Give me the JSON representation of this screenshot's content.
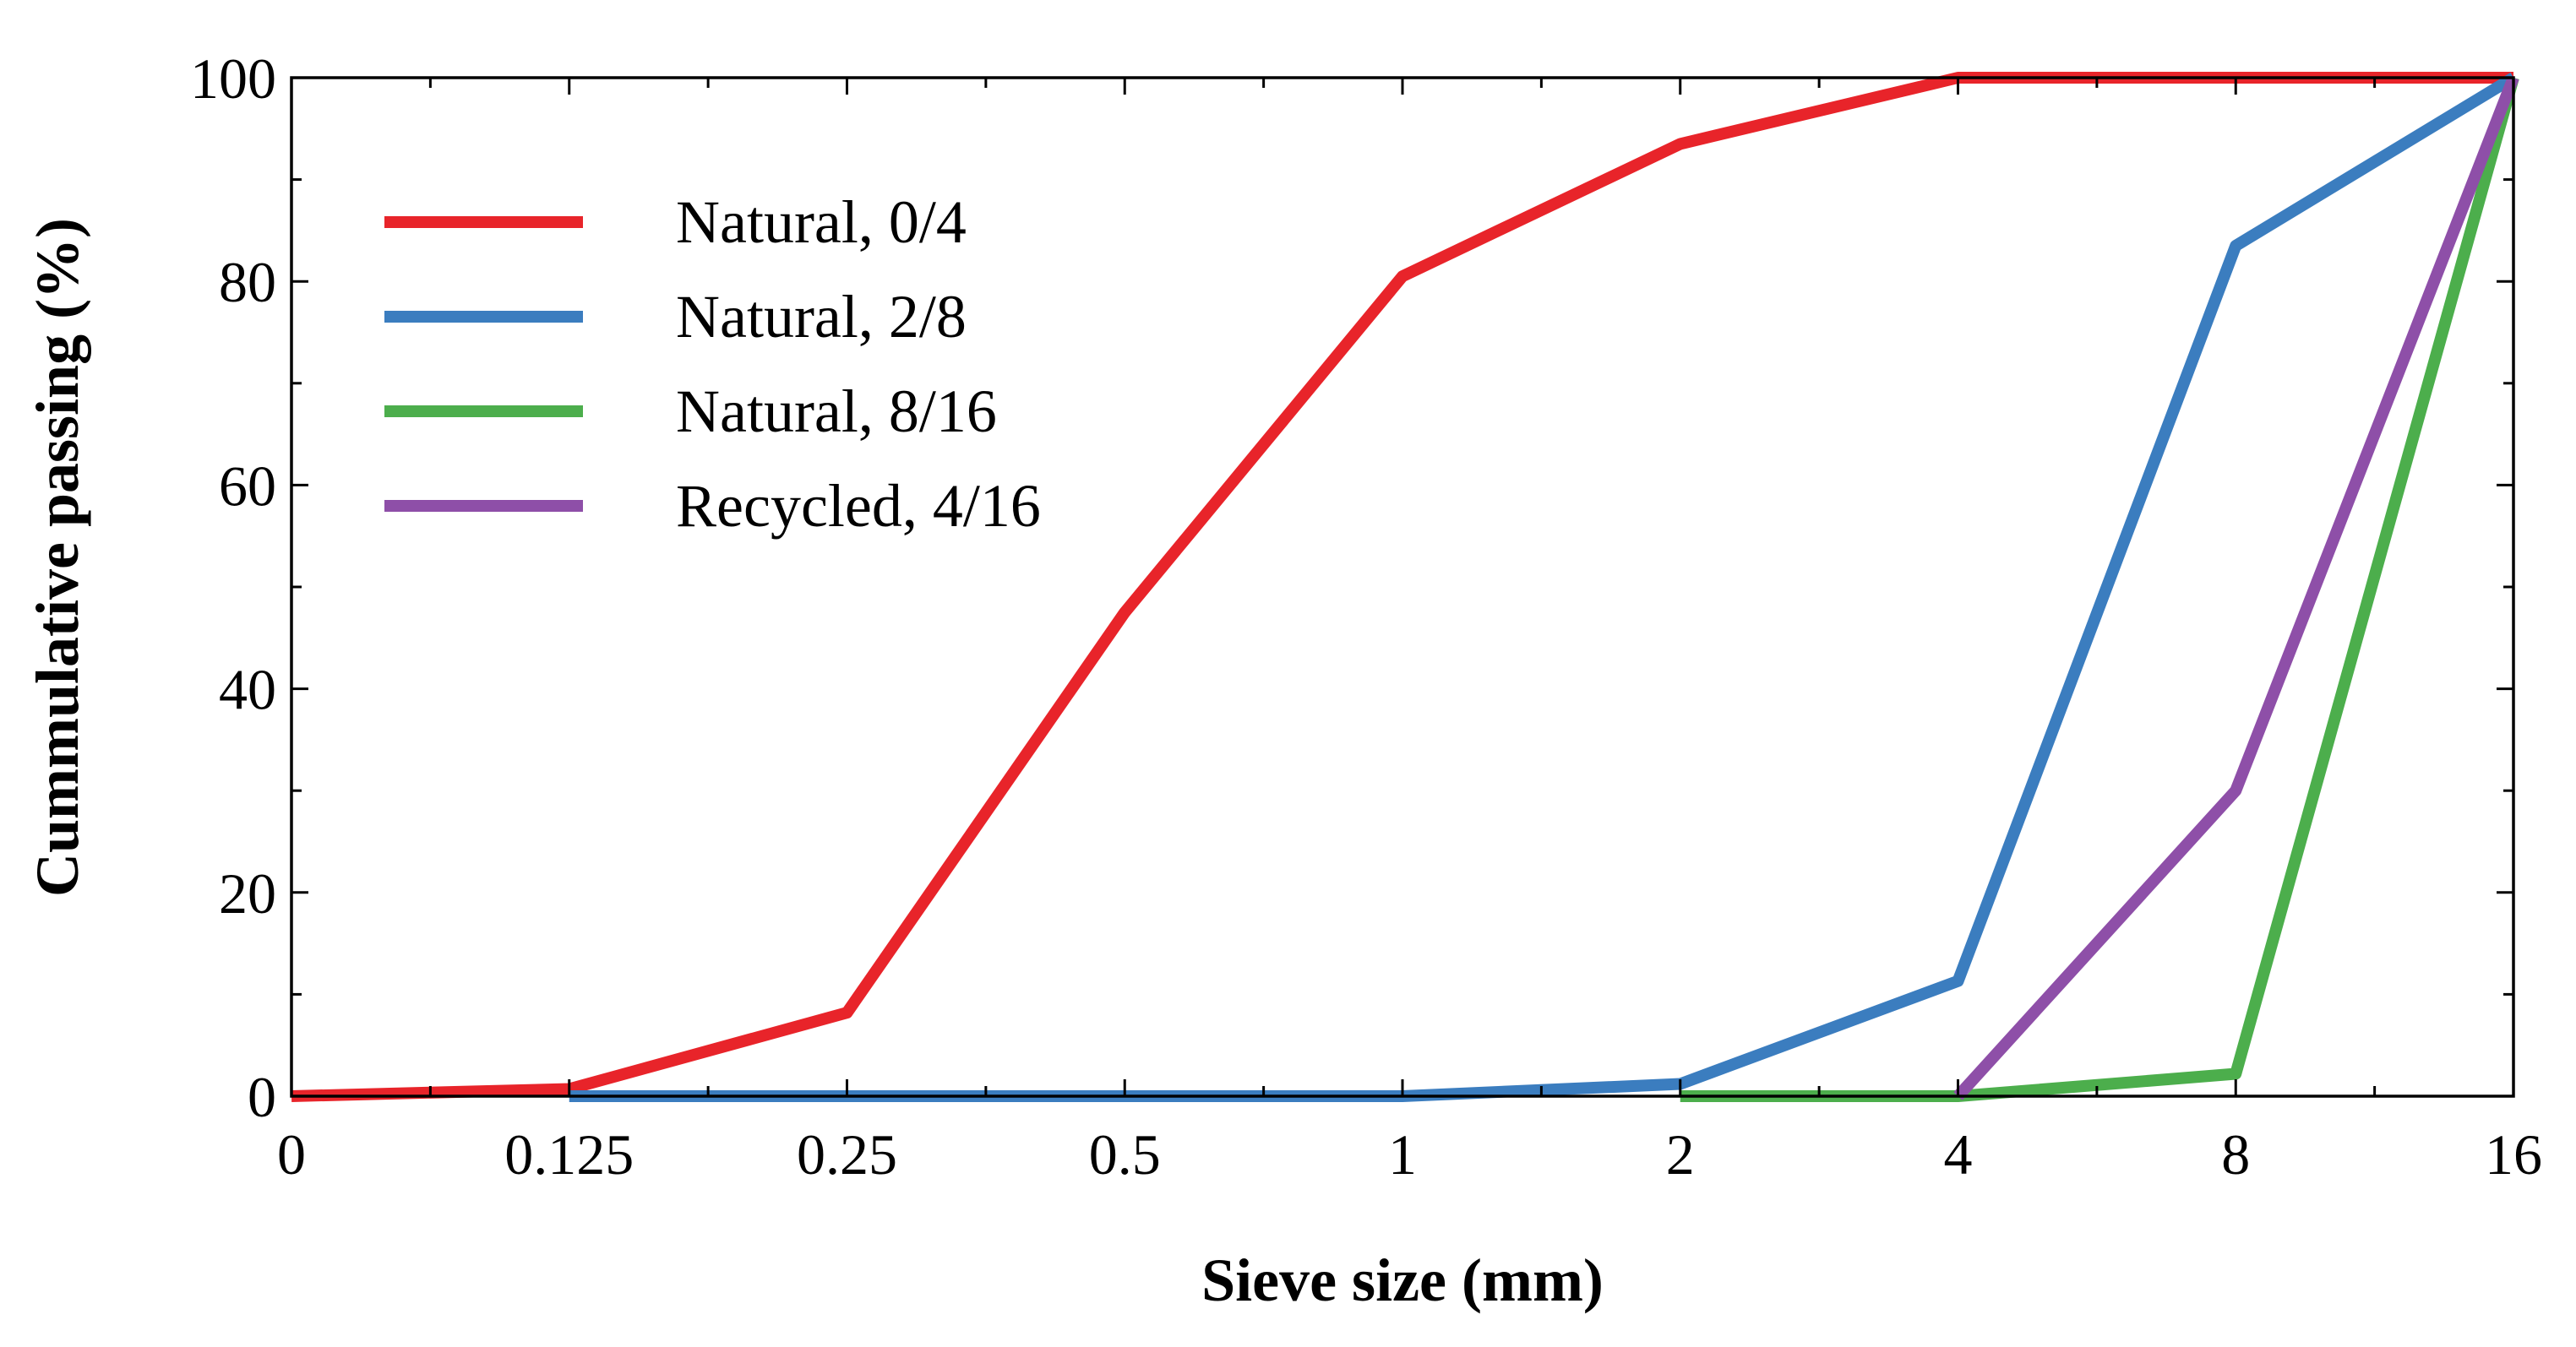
{
  "chart_data": {
    "type": "line",
    "title": "",
    "xlabel": "Sieve size (mm)",
    "ylabel": "Cummulative passing (%)",
    "x_categories": [
      "0",
      "0.125",
      "0.25",
      "0.5",
      "1",
      "2",
      "4",
      "8",
      "16"
    ],
    "ylim": [
      0,
      100
    ],
    "yticks": [
      "0",
      "20",
      "40",
      "60",
      "80",
      "100"
    ],
    "legend_position": "top-left",
    "series": [
      {
        "name": "Natural, 0/4",
        "color": "#e8242a",
        "points": [
          [
            0,
            0
          ],
          [
            1,
            0.7
          ],
          [
            2,
            8.2
          ],
          [
            3,
            47.5
          ],
          [
            4,
            80.5
          ],
          [
            5,
            93.5
          ],
          [
            6,
            100
          ],
          [
            7,
            100
          ],
          [
            8,
            100
          ]
        ]
      },
      {
        "name": "Natural, 2/8",
        "color": "#3b7dbf",
        "points": [
          [
            1,
            0
          ],
          [
            2,
            0
          ],
          [
            3,
            0
          ],
          [
            4,
            0
          ],
          [
            5,
            1.2
          ],
          [
            6,
            11.3
          ],
          [
            7,
            83.5
          ],
          [
            8,
            100
          ]
        ]
      },
      {
        "name": "Natural, 8/16",
        "color": "#4cae4c",
        "points": [
          [
            5,
            0
          ],
          [
            6,
            0
          ],
          [
            7,
            2.2
          ],
          [
            8,
            100
          ]
        ]
      },
      {
        "name": "Recycled, 4/16",
        "color": "#8e4fa8",
        "points": [
          [
            6,
            0
          ],
          [
            7,
            30
          ],
          [
            8,
            100
          ]
        ]
      }
    ]
  }
}
